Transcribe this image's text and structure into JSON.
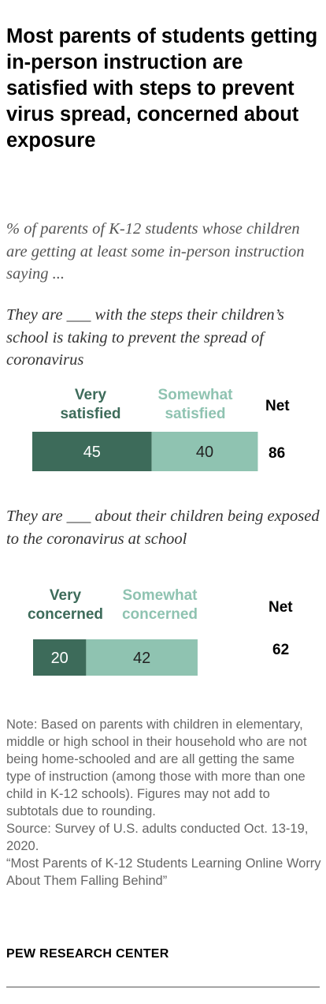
{
  "title": "Most parents of students getting in-person instruction are satisfied with steps to prevent virus spread, concerned about exposure",
  "subtitle": "% of parents of K-12 students whose children are getting at least some in-person instruction saying ...",
  "colors": {
    "dark": "#3d6b5a",
    "light": "#8fc3b1",
    "dark_text": "#3d6b5a",
    "light_text": "#8fc3b1",
    "bar_label": "#ffffff",
    "bar_label_light": "#222222"
  },
  "chart_data": [
    {
      "type": "bar",
      "orientation": "horizontal-stacked",
      "title": "They are ___ with the steps their children’s school is taking to prevent the spread of coronavirus",
      "series": [
        {
          "name": "Very satisfied",
          "values": [
            45
          ]
        },
        {
          "name": "Somewhat satisfied",
          "values": [
            40
          ]
        }
      ],
      "net_label": "Net",
      "net": [
        86
      ]
    },
    {
      "type": "bar",
      "orientation": "horizontal-stacked",
      "title": "They are ___ about their children being exposed to the coronavirus at school",
      "series": [
        {
          "name": "Very concerned",
          "values": [
            20
          ]
        },
        {
          "name": "Somewhat concerned",
          "values": [
            42
          ]
        }
      ],
      "net_label": "Net",
      "net": [
        62
      ]
    }
  ],
  "legend": {
    "very_satisfied": [
      "Very",
      "satisfied"
    ],
    "somewhat_satisfied": [
      "Somewhat",
      "satisfied"
    ],
    "very_concerned": [
      "Very",
      "concerned"
    ],
    "somewhat_concerned": [
      "Somewhat",
      "concerned"
    ]
  },
  "note_lines": [
    "Note: Based on parents with children in elementary, middle or high school in their household who are not being home-schooled and are all getting the same type of instruction (among those with more than one child in K-12 schools). Figures may not add to subtotals due to rounding.",
    "Source: Survey of U.S. adults conducted Oct. 13-19, 2020.",
    "“Most Parents of K-12 Students Learning Online Worry About Them Falling Behind”"
  ],
  "source_org": "PEW RESEARCH CENTER"
}
